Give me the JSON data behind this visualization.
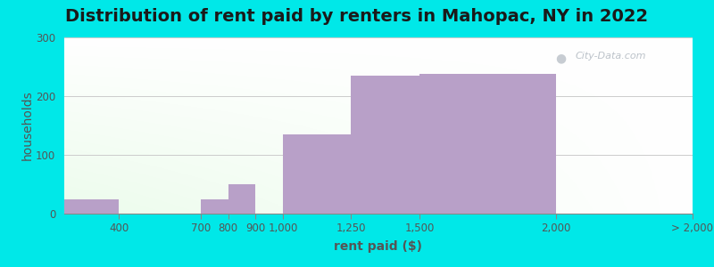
{
  "title": "Distribution of rent paid by renters in Mahopac, NY in 2022",
  "xlabel": "rent paid ($)",
  "ylabel": "households",
  "bar_color": "#b8a0c8",
  "ylim": [
    0,
    300
  ],
  "yticks": [
    0,
    100,
    200,
    300
  ],
  "bg_outer": "#00e8e8",
  "grid_color": "#cccccc",
  "title_fontsize": 14,
  "axis_label_fontsize": 10,
  "tick_fontsize": 8.5,
  "watermark_text": "City-Data.com",
  "bins_left": [
    200,
    400,
    700,
    800,
    900,
    1000,
    1250,
    1500,
    2000
  ],
  "bins_right": [
    400,
    700,
    800,
    900,
    1000,
    1250,
    1500,
    2000,
    2500
  ],
  "bar_values": [
    25,
    0,
    25,
    50,
    0,
    135,
    235,
    238,
    0
  ],
  "xtick_positions": [
    400,
    700,
    800,
    900,
    1000,
    1250,
    1500,
    2000,
    2500
  ],
  "xtick_labels": [
    "400",
    "700",
    "800",
    "900",
    "1,000",
    "1,250",
    "1,500",
    "2,000",
    "> 2,000"
  ],
  "xmin": 200,
  "xmax": 2500
}
